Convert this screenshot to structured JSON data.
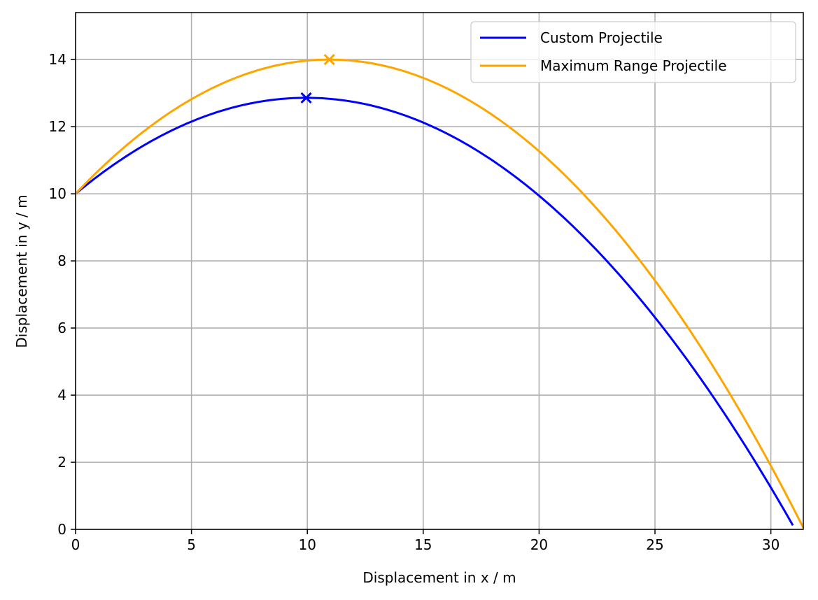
{
  "chart_data": {
    "type": "line",
    "title": "",
    "xlabel": "Displacement in x / m",
    "ylabel": "Displacement in y / m",
    "xlim": [
      0,
      31.4
    ],
    "ylim": [
      0,
      15.4
    ],
    "xticks": [
      0,
      5,
      10,
      15,
      20,
      25,
      30
    ],
    "yticks": [
      0,
      2,
      4,
      6,
      8,
      10,
      12,
      14
    ],
    "grid": true,
    "legend_position": "top-right",
    "series": [
      {
        "name": "Custom Projectile",
        "color": "#0000ff",
        "start": [
          0,
          10
        ],
        "apex": [
          9.95,
          12.86
        ],
        "end": [
          30.95,
          0
        ],
        "apex_marker": "x"
      },
      {
        "name": "Maximum Range Projectile",
        "color": "#ffa500",
        "start": [
          0,
          10
        ],
        "apex": [
          10.95,
          14.0
        ],
        "end": [
          31.4,
          0
        ],
        "apex_marker": "x"
      }
    ]
  }
}
